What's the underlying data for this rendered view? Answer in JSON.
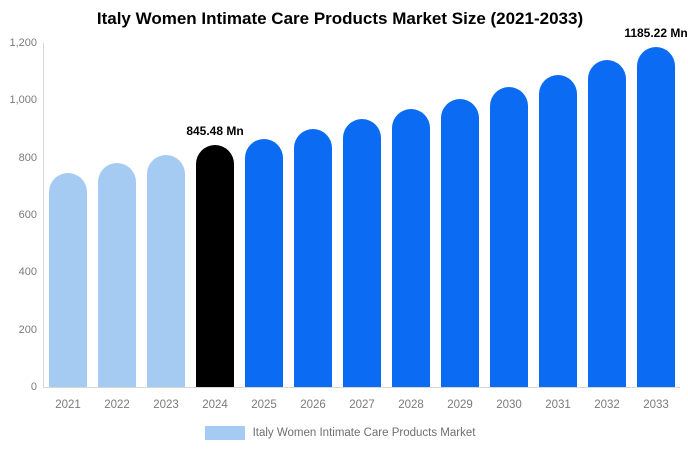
{
  "chart_data": {
    "type": "bar",
    "title": "Italy Women Intimate Care Products Market Size (2021-2033)",
    "categories": [
      "2021",
      "2022",
      "2023",
      "2024",
      "2025",
      "2026",
      "2027",
      "2028",
      "2029",
      "2030",
      "2031",
      "2032",
      "2033"
    ],
    "values": [
      745,
      780,
      810,
      845.48,
      865,
      900,
      935,
      970,
      1005,
      1045,
      1090,
      1140,
      1185.22
    ],
    "bar_colors": [
      "#a5cbf3",
      "#a5cbf3",
      "#a5cbf3",
      "#000000",
      "#0b6cf3",
      "#0b6cf3",
      "#0b6cf3",
      "#0b6cf3",
      "#0b6cf3",
      "#0b6cf3",
      "#0b6cf3",
      "#0b6cf3",
      "#0b6cf3"
    ],
    "annotations": [
      {
        "category": "2024",
        "index": 3,
        "text": "845.48 Mn"
      },
      {
        "category": "2033",
        "index": 12,
        "text": "1185.22 Mn"
      }
    ],
    "ylim": [
      0,
      1200
    ],
    "yticks": [
      0,
      200,
      400,
      600,
      800,
      1000,
      1200
    ],
    "ytick_labels": [
      "0",
      "200",
      "400",
      "600",
      "800",
      "1,000",
      "1,200"
    ],
    "grid": false,
    "xlabel": "",
    "ylabel": "",
    "legend": {
      "position": "bottom",
      "items": [
        {
          "label": "Italy Women Intimate Care Products Market",
          "color": "#a5cbf3"
        }
      ]
    },
    "colors": {
      "historical": "#a5cbf3",
      "base_year": "#000000",
      "forecast": "#0b6cf3",
      "axis_line": "#d6d6d6",
      "tick_text": "#7b7b7b",
      "legend_text": "#6f6f6f"
    }
  }
}
